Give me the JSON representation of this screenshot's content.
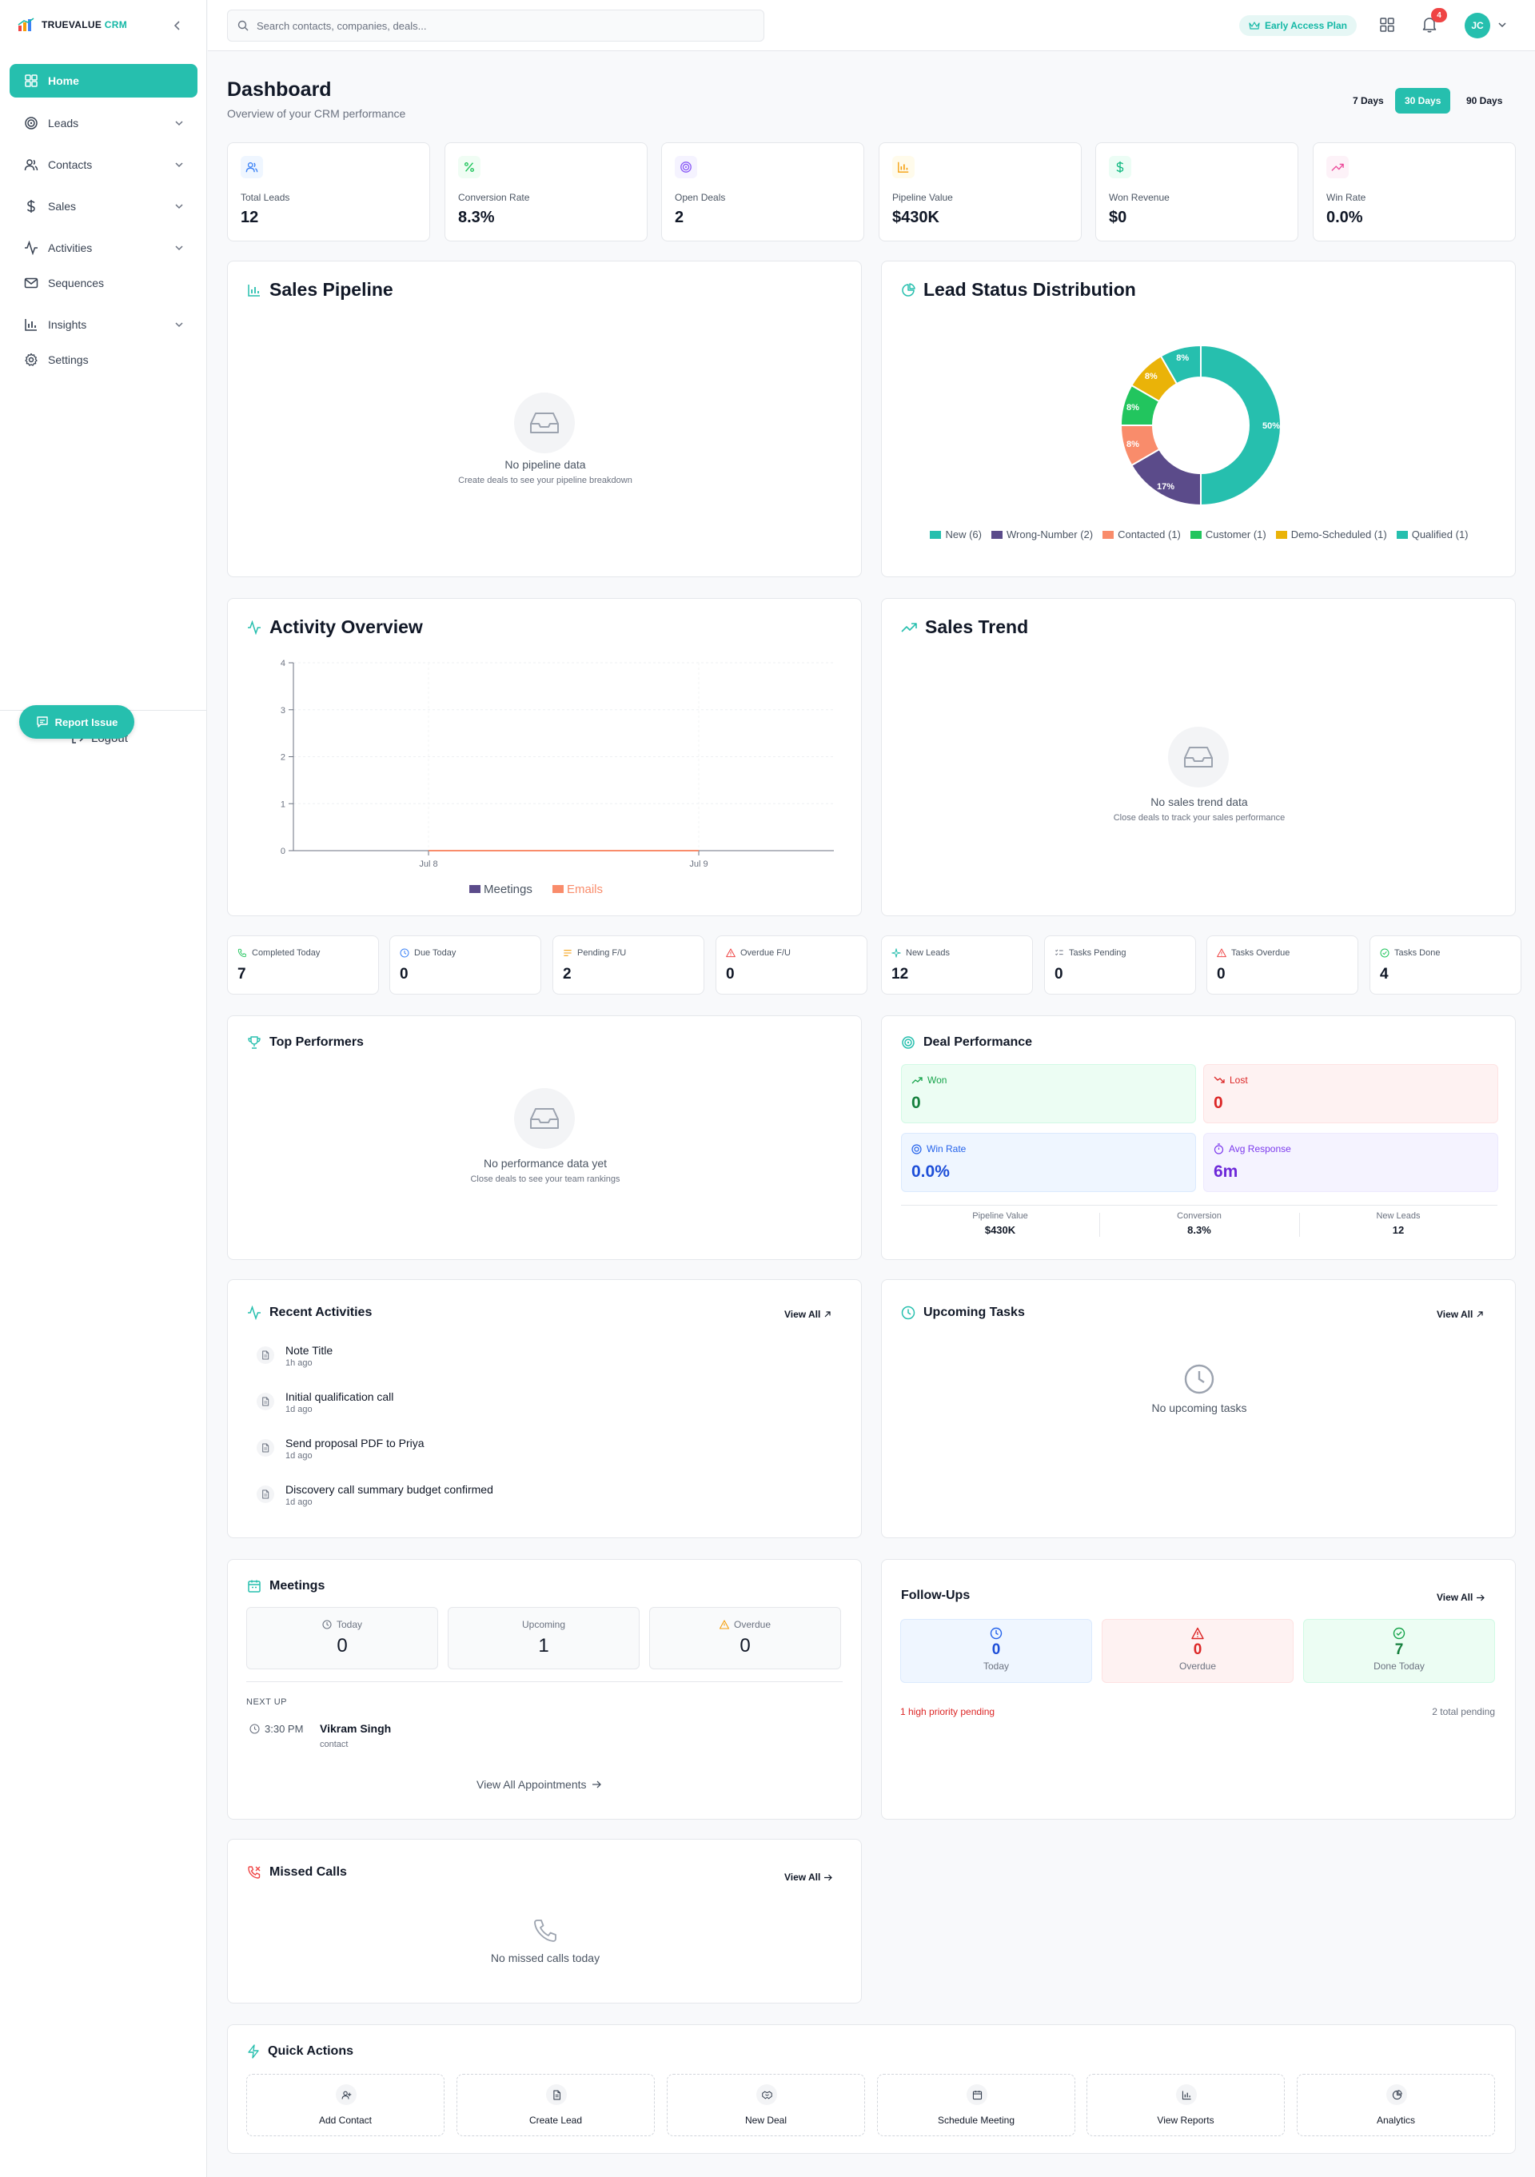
{
  "app": {
    "name_main": "TRUEVALUE",
    "name_accent": "CRM"
  },
  "sidebar": {
    "items": [
      {
        "label": "Home",
        "icon": "home-grid-icon",
        "active": true
      },
      {
        "label": "Leads",
        "icon": "target-icon",
        "chevron": true
      },
      {
        "label": "Contacts",
        "icon": "users-icon",
        "chevron": true
      },
      {
        "label": "Sales",
        "icon": "dollar-icon",
        "chevron": true
      },
      {
        "label": "Activities",
        "icon": "activity-icon",
        "chevron": true
      },
      {
        "label": "Sequences",
        "icon": "mail-icon"
      },
      {
        "label": "Insights",
        "icon": "bar-chart-icon",
        "chevron": true
      },
      {
        "label": "Settings",
        "icon": "gear-icon"
      }
    ],
    "report_issue": "Report Issue",
    "logout": "Logout"
  },
  "topbar": {
    "search_placeholder": "Search contacts, companies, deals...",
    "plan": "Early Access Plan",
    "notifications": "4",
    "avatar": "JC"
  },
  "header": {
    "title": "Dashboard",
    "subtitle": "Overview of your CRM performance",
    "ranges": [
      "7 Days",
      "30 Days",
      "90 Days"
    ],
    "active_range": "30 Days"
  },
  "kpis": [
    {
      "label": "Total Leads",
      "value": "12",
      "icon": "users-icon",
      "color": "#3b82f6",
      "bg": "#eff6ff"
    },
    {
      "label": "Conversion Rate",
      "value": "8.3%",
      "icon": "percent-icon",
      "color": "#22c55e",
      "bg": "#f0fdf4"
    },
    {
      "label": "Open Deals",
      "value": "2",
      "icon": "target-icon",
      "color": "#8b5cf6",
      "bg": "#f5f3ff"
    },
    {
      "label": "Pipeline Value",
      "value": "$430K",
      "icon": "bar-chart-icon",
      "color": "#f59e0b",
      "bg": "#fffbeb"
    },
    {
      "label": "Won Revenue",
      "value": "$0",
      "icon": "dollar-icon",
      "color": "#10b981",
      "bg": "#ecfdf5"
    },
    {
      "label": "Win Rate",
      "value": "0.0%",
      "icon": "trending-up-icon",
      "color": "#ec4899",
      "bg": "#fdf2f8"
    }
  ],
  "sales_pipeline": {
    "title": "Sales Pipeline",
    "empty_title": "No pipeline data",
    "empty_sub": "Create deals to see your pipeline breakdown"
  },
  "lead_status": {
    "title": "Lead Status Distribution"
  },
  "activity_overview": {
    "title": "Activity Overview"
  },
  "sales_trend": {
    "title": "Sales Trend",
    "empty_title": "No sales trend data",
    "empty_sub": "Close deals to track your sales performance"
  },
  "chart_data": [
    {
      "type": "pie",
      "title": "Lead Status Distribution",
      "categories": [
        "New",
        "Wrong-Number",
        "Contacted",
        "Customer",
        "Demo-Scheduled",
        "Qualified"
      ],
      "values": [
        6,
        2,
        1,
        1,
        1,
        1
      ],
      "labels": [
        "50%",
        "17%",
        "8%",
        "8%",
        "8%",
        "8%"
      ],
      "legend": [
        "New (6)",
        "Wrong-Number (2)",
        "Contacted (1)",
        "Customer (1)",
        "Demo-Scheduled (1)",
        "Qualified (1)"
      ],
      "colors": [
        "#26bfae",
        "#5b4b8a",
        "#f98c6b",
        "#22c55e",
        "#eab308",
        "#26bfae"
      ],
      "legend_position": "bottom"
    },
    {
      "type": "line",
      "title": "Activity Overview",
      "categories": [
        "Jul 8",
        "Jul 9"
      ],
      "yticks": [
        "0",
        "1",
        "2",
        "3",
        "4"
      ],
      "ylim": [
        0,
        4
      ],
      "series": [
        {
          "name": "Meetings",
          "values": [
            0,
            0
          ],
          "color": "#5b4b8a"
        },
        {
          "name": "Emails",
          "values": [
            0,
            0
          ],
          "color": "#f98c6b"
        }
      ],
      "grid": true,
      "legend_position": "bottom"
    }
  ],
  "mini_stats": [
    {
      "label": "Completed Today",
      "value": "7",
      "icon": "phone-icon",
      "color": "#22c55e"
    },
    {
      "label": "Due Today",
      "value": "0",
      "icon": "clock-icon",
      "color": "#3b82f6"
    },
    {
      "label": "Pending F/U",
      "value": "2",
      "icon": "list-icon",
      "color": "#f59e0b"
    },
    {
      "label": "Overdue F/U",
      "value": "0",
      "icon": "alert-triangle-icon",
      "color": "#ef4444"
    },
    {
      "label": "New Leads",
      "value": "12",
      "icon": "sparkle-icon",
      "color": "#14b8a6"
    },
    {
      "label": "Tasks Pending",
      "value": "0",
      "icon": "checklist-icon",
      "color": "#6b7280"
    },
    {
      "label": "Tasks Overdue",
      "value": "0",
      "icon": "alert-triangle-icon",
      "color": "#ef4444"
    },
    {
      "label": "Tasks Done",
      "value": "4",
      "icon": "check-circle-icon",
      "color": "#22c55e"
    }
  ],
  "top_performers": {
    "title": "Top Performers",
    "empty_title": "No performance data yet",
    "empty_sub": "Close deals to see your team rankings"
  },
  "deal_performance": {
    "title": "Deal Performance",
    "won_label": "Won",
    "won_value": "0",
    "lost_label": "Lost",
    "lost_value": "0",
    "winrate_label": "Win Rate",
    "winrate_value": "0.0%",
    "avg_label": "Avg Response",
    "avg_value": "6m",
    "stats": [
      {
        "label": "Pipeline Value",
        "value": "$430K"
      },
      {
        "label": "Conversion",
        "value": "8.3%"
      },
      {
        "label": "New Leads",
        "value": "12"
      }
    ]
  },
  "recent_activities": {
    "title": "Recent Activities",
    "view_all": "View All",
    "items": [
      {
        "title": "Note Title",
        "time": "1h ago"
      },
      {
        "title": "Initial qualification call",
        "time": "1d ago"
      },
      {
        "title": "Send proposal PDF to Priya",
        "time": "1d ago"
      },
      {
        "title": "Discovery call summary budget confirmed",
        "time": "1d ago"
      }
    ]
  },
  "upcoming_tasks": {
    "title": "Upcoming Tasks",
    "view_all": "View All",
    "empty": "No upcoming tasks"
  },
  "meetings": {
    "title": "Meetings",
    "today_label": "Today",
    "today_value": "0",
    "upcoming_label": "Upcoming",
    "upcoming_value": "1",
    "overdue_label": "Overdue",
    "overdue_value": "0",
    "next_up": "NEXT UP",
    "next_time": "3:30 PM",
    "next_name": "Vikram Singh",
    "next_type": "contact",
    "view_all": "View All Appointments"
  },
  "follow_ups": {
    "title": "Follow-Ups",
    "view_all": "View All",
    "today_label": "Today",
    "today_value": "0",
    "overdue_label": "Overdue",
    "overdue_value": "0",
    "done_label": "Done Today",
    "done_value": "7",
    "priority": "1 high priority pending",
    "total": "2 total pending"
  },
  "missed_calls": {
    "title": "Missed Calls",
    "view_all": "View All",
    "empty": "No missed calls today"
  },
  "quick_actions": {
    "title": "Quick Actions",
    "items": [
      {
        "label": "Add Contact",
        "icon": "user-plus-icon"
      },
      {
        "label": "Create Lead",
        "icon": "document-icon"
      },
      {
        "label": "New Deal",
        "icon": "handshake-icon"
      },
      {
        "label": "Schedule Meeting",
        "icon": "calendar-icon"
      },
      {
        "label": "View Reports",
        "icon": "bar-chart-icon"
      },
      {
        "label": "Analytics",
        "icon": "pie-chart-icon"
      }
    ]
  }
}
